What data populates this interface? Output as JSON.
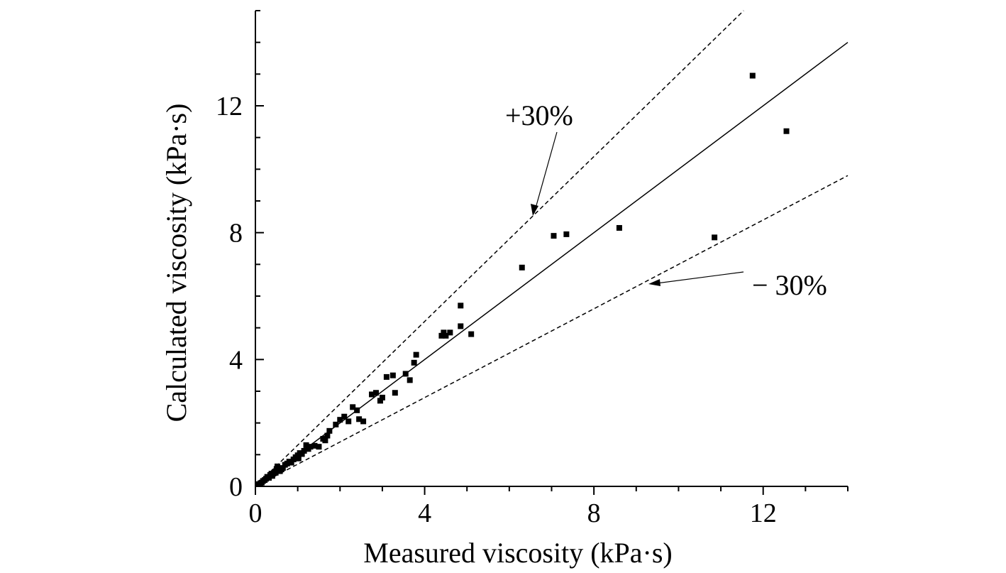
{
  "chart_data": {
    "type": "scatter",
    "title": "",
    "xlabel": "Measured viscosity (kPa·s)",
    "ylabel": "Calculated viscosity (kPa·s)",
    "xlim": [
      0,
      14
    ],
    "ylim": [
      0,
      15
    ],
    "x_ticks": [
      0,
      4,
      8,
      12
    ],
    "y_ticks": [
      0,
      4,
      8,
      12
    ],
    "x_tick_labels": [
      "0",
      "4",
      "8",
      "12"
    ],
    "y_tick_labels": [
      "0",
      "4",
      "8",
      "12"
    ],
    "grid": false,
    "reference_lines": [
      {
        "slope": 1.0,
        "style": "solid"
      },
      {
        "slope": 1.3,
        "style": "dashed"
      },
      {
        "slope": 0.7,
        "style": "dashed"
      }
    ],
    "annotations": {
      "plus": "+30%",
      "minus": "− 30%"
    },
    "series": [
      {
        "points": [
          [
            0.08,
            0.07
          ],
          [
            0.12,
            0.1
          ],
          [
            0.15,
            0.12
          ],
          [
            0.18,
            0.17
          ],
          [
            0.22,
            0.2
          ],
          [
            0.25,
            0.24
          ],
          [
            0.28,
            0.3
          ],
          [
            0.32,
            0.27
          ],
          [
            0.35,
            0.36
          ],
          [
            0.38,
            0.4
          ],
          [
            0.4,
            0.33
          ],
          [
            0.45,
            0.45
          ],
          [
            0.48,
            0.43
          ],
          [
            0.5,
            0.55
          ],
          [
            0.52,
            0.63
          ],
          [
            0.55,
            0.52
          ],
          [
            0.58,
            0.48
          ],
          [
            0.62,
            0.55
          ],
          [
            0.65,
            0.58
          ],
          [
            0.7,
            0.68
          ],
          [
            0.75,
            0.72
          ],
          [
            0.8,
            0.78
          ],
          [
            0.85,
            0.75
          ],
          [
            0.9,
            0.85
          ],
          [
            0.95,
            0.92
          ],
          [
            1.0,
            0.98
          ],
          [
            1.02,
            0.88
          ],
          [
            1.05,
            1.05
          ],
          [
            1.1,
            1.02
          ],
          [
            1.15,
            1.12
          ],
          [
            1.2,
            1.3
          ],
          [
            1.25,
            1.18
          ],
          [
            1.3,
            1.25
          ],
          [
            1.4,
            1.28
          ],
          [
            1.5,
            1.25
          ],
          [
            1.6,
            1.5
          ],
          [
            1.65,
            1.45
          ],
          [
            1.7,
            1.6
          ],
          [
            1.75,
            1.75
          ],
          [
            1.9,
            1.95
          ],
          [
            2.0,
            2.1
          ],
          [
            2.1,
            2.2
          ],
          [
            2.2,
            2.05
          ],
          [
            2.3,
            2.5
          ],
          [
            2.4,
            2.4
          ],
          [
            2.45,
            2.12
          ],
          [
            2.55,
            2.05
          ],
          [
            2.75,
            2.9
          ],
          [
            2.85,
            2.95
          ],
          [
            2.95,
            2.7
          ],
          [
            3.0,
            2.8
          ],
          [
            3.1,
            3.45
          ],
          [
            3.25,
            3.5
          ],
          [
            3.3,
            2.95
          ],
          [
            3.55,
            3.55
          ],
          [
            3.65,
            3.35
          ],
          [
            3.75,
            3.9
          ],
          [
            3.8,
            4.15
          ],
          [
            4.4,
            4.75
          ],
          [
            4.45,
            4.85
          ],
          [
            4.5,
            4.75
          ],
          [
            4.6,
            4.85
          ],
          [
            4.85,
            5.7
          ],
          [
            4.85,
            5.05
          ],
          [
            5.1,
            4.8
          ],
          [
            6.3,
            6.9
          ],
          [
            7.05,
            7.9
          ],
          [
            7.35,
            7.95
          ],
          [
            8.6,
            8.15
          ],
          [
            10.85,
            7.85
          ],
          [
            11.75,
            12.95
          ],
          [
            12.55,
            11.2
          ]
        ]
      }
    ]
  }
}
